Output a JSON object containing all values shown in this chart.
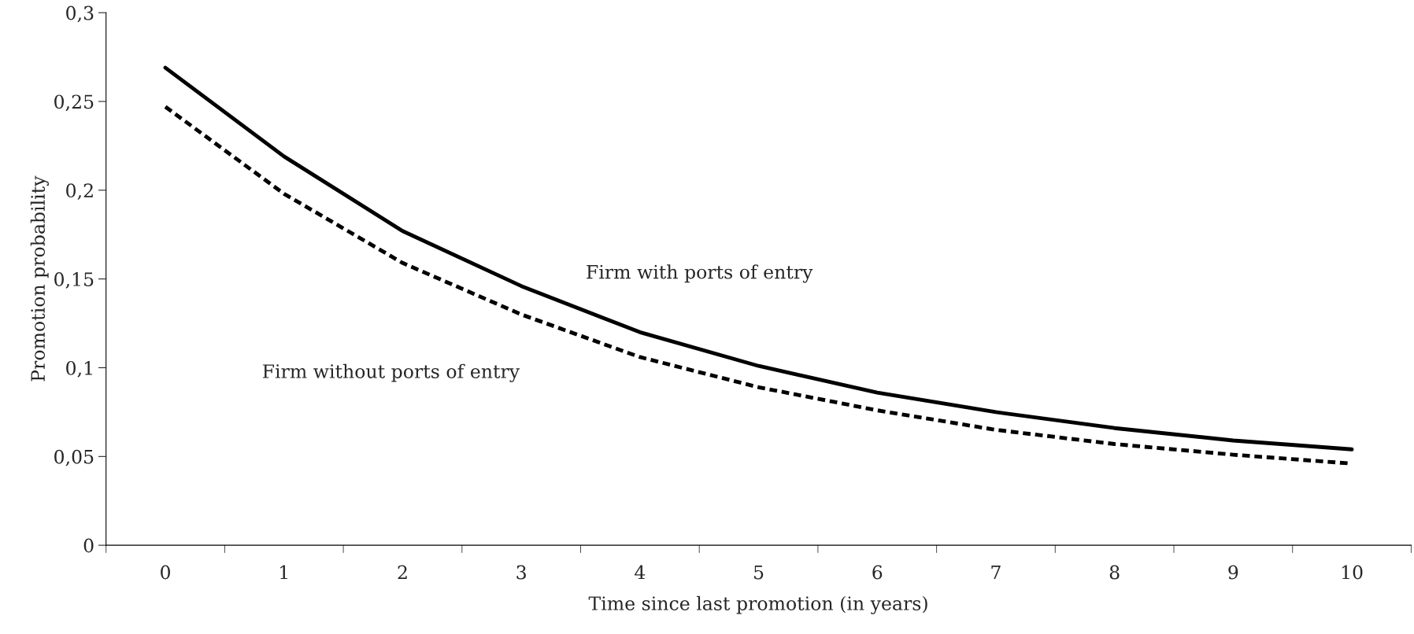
{
  "chart_data": {
    "type": "line",
    "xlabel": "Time since last promotion (in years)",
    "ylabel": "Promotion probability",
    "categories": [
      "0",
      "1",
      "2",
      "3",
      "4",
      "5",
      "6",
      "7",
      "8",
      "9",
      "10"
    ],
    "series": [
      {
        "name": "Firm with ports of entry",
        "color": "#000000",
        "line_style": "solid",
        "values": [
          0.269,
          0.219,
          0.177,
          0.146,
          0.12,
          0.101,
          0.086,
          0.075,
          0.066,
          0.059,
          0.054
        ]
      },
      {
        "name": "Firm without ports of entry",
        "color": "#000000",
        "line_style": "dashed",
        "values": [
          0.247,
          0.198,
          0.159,
          0.13,
          0.106,
          0.089,
          0.076,
          0.065,
          0.057,
          0.051,
          0.046
        ]
      }
    ],
    "ylim": [
      0,
      0.3
    ],
    "yticks": [
      {
        "value": 0,
        "label": "0"
      },
      {
        "value": 0.05,
        "label": "0,05"
      },
      {
        "value": 0.1,
        "label": "0,1"
      },
      {
        "value": 0.15,
        "label": "0,15"
      },
      {
        "value": 0.2,
        "label": "0,2"
      },
      {
        "value": 0.25,
        "label": "0,25"
      },
      {
        "value": 0.3,
        "label": "0,3"
      }
    ],
    "grid": false,
    "legend": false
  }
}
